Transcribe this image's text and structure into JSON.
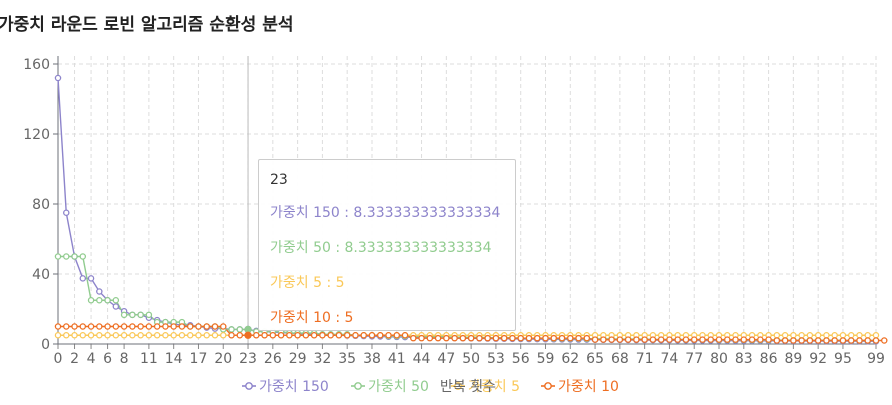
{
  "title": "가중치 라운드 로빈 알고리즘 순환성 분석",
  "chart_data": {
    "type": "line",
    "title": "가중치 라운드 로빈 알고리즘 순환성 분석",
    "xlabel": "반복 횟수",
    "ylabel": "",
    "ylim": [
      0,
      160
    ],
    "yticks": [
      0,
      40,
      80,
      120,
      160
    ],
    "xticks": [
      0,
      2,
      4,
      6,
      8,
      11,
      14,
      17,
      20,
      23,
      26,
      29,
      32,
      35,
      38,
      41,
      44,
      47,
      50,
      53,
      56,
      59,
      62,
      65,
      68,
      71,
      74,
      77,
      80,
      83,
      86,
      89,
      92,
      95,
      99
    ],
    "x_count": 100,
    "grid": true,
    "legend_position": "bottom",
    "series": [
      {
        "name": "가중치 150",
        "color": "#8d84cb",
        "values": [
          152,
          75,
          50,
          37.5,
          37.5,
          30,
          25,
          21.43,
          18.75,
          16.67,
          16.67,
          15,
          13.64,
          12.5,
          11.54,
          10.71,
          10.71,
          10,
          9.38,
          8.82,
          8.82,
          8.33,
          8.33,
          8.33,
          7.5,
          7.14,
          6.82,
          6.52,
          6.25,
          6,
          5.77,
          5.56,
          5.36,
          5.17,
          5,
          4.84,
          4.69,
          4.55,
          4.41,
          4.29,
          4.17,
          4.05,
          3.95,
          3.85,
          3.75,
          3.66,
          3.57,
          3.49,
          3.41,
          3.33,
          3.26,
          3.19,
          3.13,
          3.06,
          3,
          2.94,
          2.88,
          2.83,
          2.78,
          2.73,
          2.68,
          2.63,
          2.59,
          2.54,
          2.5,
          2.46,
          2.42,
          2.38,
          2.34,
          2.31,
          2.27,
          2.24,
          2.21,
          2.17,
          2.14,
          2.11,
          2.08,
          2.05,
          2.03,
          2,
          1.97,
          1.95,
          1.92,
          1.9,
          1.88,
          1.85,
          1.83,
          1.81,
          1.79,
          1.76,
          1.74,
          1.72,
          1.7,
          1.68,
          1.66,
          1.64,
          1.63,
          1.61,
          1.59,
          1.56
        ]
      },
      {
        "name": "가중치 50",
        "color": "#91cc8f",
        "values": [
          50,
          50,
          50,
          50,
          25,
          25,
          25,
          25,
          16.67,
          16.67,
          16.67,
          16.67,
          12.5,
          12.5,
          12.5,
          12.5,
          10,
          10,
          10,
          10,
          8.33,
          8.33,
          8.33,
          8.33,
          7.14,
          7.14,
          7.14,
          7.14,
          6.25,
          6.25,
          6.25,
          6.25,
          5.56,
          5.56,
          5.56,
          5.56,
          5,
          5,
          5,
          5,
          4.55,
          4.55,
          4.55,
          4.55,
          4.17,
          4.17,
          4.17,
          4.17,
          3.85,
          3.85,
          3.85,
          3.85,
          3.57,
          3.57,
          3.57,
          3.57,
          3.33,
          3.33,
          3.33,
          3.33,
          3.13,
          3.13,
          3.13,
          3.13,
          2.94,
          2.94,
          2.94,
          2.94,
          2.78,
          2.78,
          2.78,
          2.78,
          2.63,
          2.63,
          2.63,
          2.63,
          2.5,
          2.5,
          2.5,
          2.5,
          2.38,
          2.38,
          2.38,
          2.38,
          2.27,
          2.27,
          2.27,
          2.27,
          2.17,
          2.17,
          2.17,
          2.17,
          2.08,
          2.08,
          2.08,
          2.08,
          2,
          2,
          2,
          2
        ]
      },
      {
        "name": "가중치 5",
        "color": "#fac858",
        "values": [
          5,
          5,
          5,
          5,
          5,
          5,
          5,
          5,
          5,
          5,
          5,
          5,
          5,
          5,
          5,
          5,
          5,
          5,
          5,
          5,
          5,
          5,
          5,
          5,
          5,
          5,
          5,
          5,
          5,
          5,
          5,
          5,
          5,
          5,
          5,
          5,
          5,
          5,
          5,
          5,
          5,
          5,
          5,
          5,
          5,
          5,
          5,
          5,
          5,
          5,
          5,
          5,
          5,
          5,
          5,
          5,
          5,
          5,
          5,
          5,
          5,
          5,
          5,
          5,
          5,
          5,
          5,
          5,
          5,
          5,
          5,
          5,
          5,
          5,
          5,
          5,
          5,
          5,
          5,
          5,
          5,
          5,
          5,
          5,
          5,
          5,
          5,
          5,
          5,
          5,
          5,
          5,
          5,
          5,
          5,
          5,
          5,
          5,
          5,
          5
        ]
      },
      {
        "name": "가중치 10",
        "color": "#ee6e22",
        "values": [
          10,
          10,
          10,
          10,
          10,
          10,
          10,
          10,
          10,
          10,
          10,
          10,
          10,
          10,
          10,
          10,
          10,
          10,
          10,
          10,
          10,
          5,
          5,
          5,
          5,
          5,
          5,
          5,
          5,
          5,
          5,
          5,
          5,
          5,
          5,
          5,
          5,
          5,
          5,
          5,
          5,
          5,
          5,
          3.33,
          3.33,
          3.33,
          3.33,
          3.33,
          3.33,
          3.33,
          3.33,
          3.33,
          3.33,
          3.33,
          3.33,
          3.33,
          3.33,
          3.33,
          3.33,
          3.33,
          3.33,
          3.33,
          3.33,
          3.33,
          3.33,
          2.5,
          2.5,
          2.5,
          2.5,
          2.5,
          2.5,
          2.5,
          2.5,
          2.5,
          2.5,
          2.5,
          2.5,
          2.5,
          2.5,
          2.5,
          2.5,
          2.5,
          2.5,
          2.5,
          2.5,
          2.5,
          2.5,
          2.0,
          2.0,
          2.0,
          2.0,
          2.0,
          2.0,
          2.0,
          2.0,
          2.0,
          2.0,
          2.0,
          2.0,
          2.0,
          2.0
        ]
      }
    ],
    "tooltip": {
      "title": "23",
      "rows": [
        {
          "text": "가중치 150 : 8.333333333333334",
          "color": "#8d84cb"
        },
        {
          "text": "가중치 50 : 8.333333333333334",
          "color": "#91cc8f"
        },
        {
          "text": "가중치 5 : 5",
          "color": "#fac858"
        },
        {
          "text": "가중치 10 : 5",
          "color": "#ee6e22"
        }
      ]
    },
    "hover_index": 23
  }
}
